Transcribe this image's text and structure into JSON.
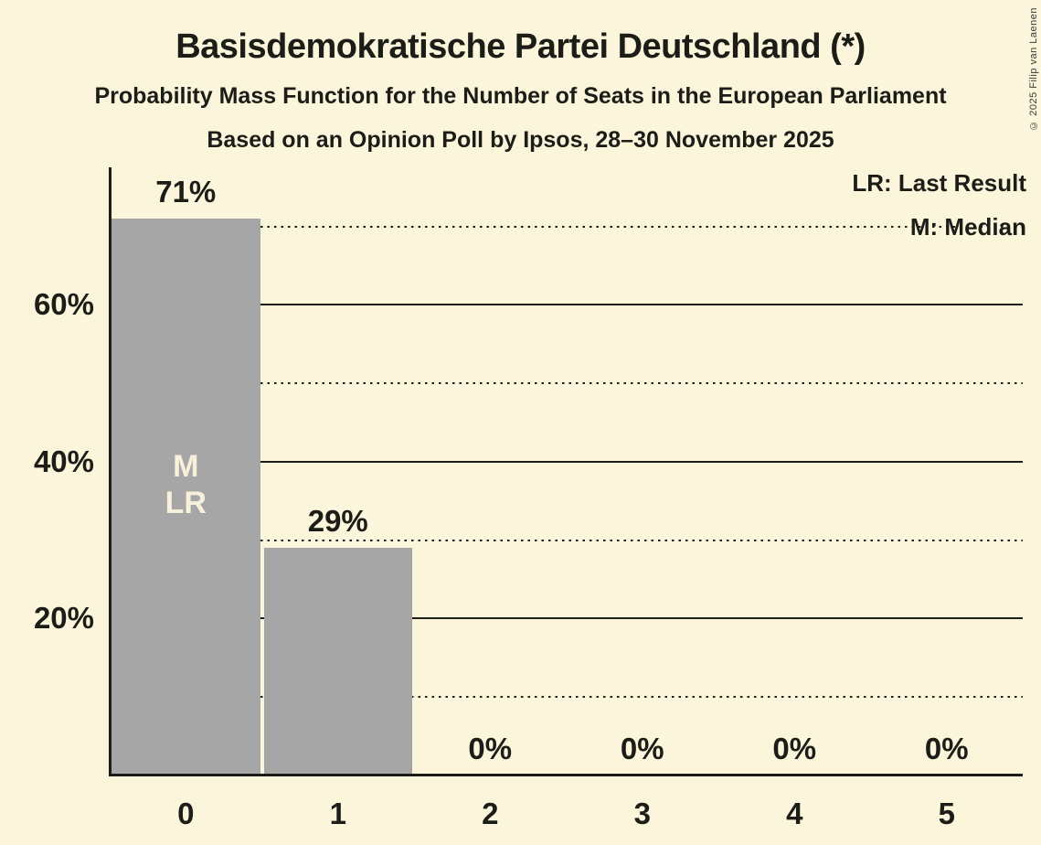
{
  "header": {
    "title": "Basisdemokratische Partei Deutschland (*)",
    "subtitle1": "Probability Mass Function for the Number of Seats in the European Parliament",
    "subtitle2": "Based on an Opinion Poll by Ipsos, 28–30 November 2025"
  },
  "copyright": "© 2025 Filip van Laenen",
  "legend": {
    "position": "top-right",
    "lr_label": "LR: Last Result",
    "m_label": "M: Median"
  },
  "colors": {
    "background": "#FBF5DC",
    "bar": "#A6A6A6",
    "ink": "#1D1D18",
    "bar_annotation_text": "#F7F1DC"
  },
  "chart_data": {
    "type": "bar",
    "title": "Basisdemokratische Partei Deutschland (*)",
    "categories": [
      "0",
      "1",
      "2",
      "3",
      "4",
      "5"
    ],
    "values": [
      71,
      29,
      0,
      0,
      0,
      0
    ],
    "value_labels": [
      "71%",
      "29%",
      "0%",
      "0%",
      "0%",
      "0%"
    ],
    "bar_annotations": [
      {
        "category_index": 0,
        "lines": [
          "M",
          "LR"
        ]
      }
    ],
    "xlabel": "",
    "ylabel": "",
    "ylim": [
      0,
      77.5
    ],
    "yticks_labeled": [
      {
        "value": 20,
        "label": "20%"
      },
      {
        "value": 40,
        "label": "40%"
      },
      {
        "value": 60,
        "label": "60%"
      }
    ],
    "gridlines_solid": [
      20,
      40,
      60
    ],
    "gridlines_dotted": [
      10,
      30,
      50,
      70
    ],
    "grid": "horizontal",
    "legend_entries": [
      "LR: Last Result",
      "M: Median"
    ]
  }
}
